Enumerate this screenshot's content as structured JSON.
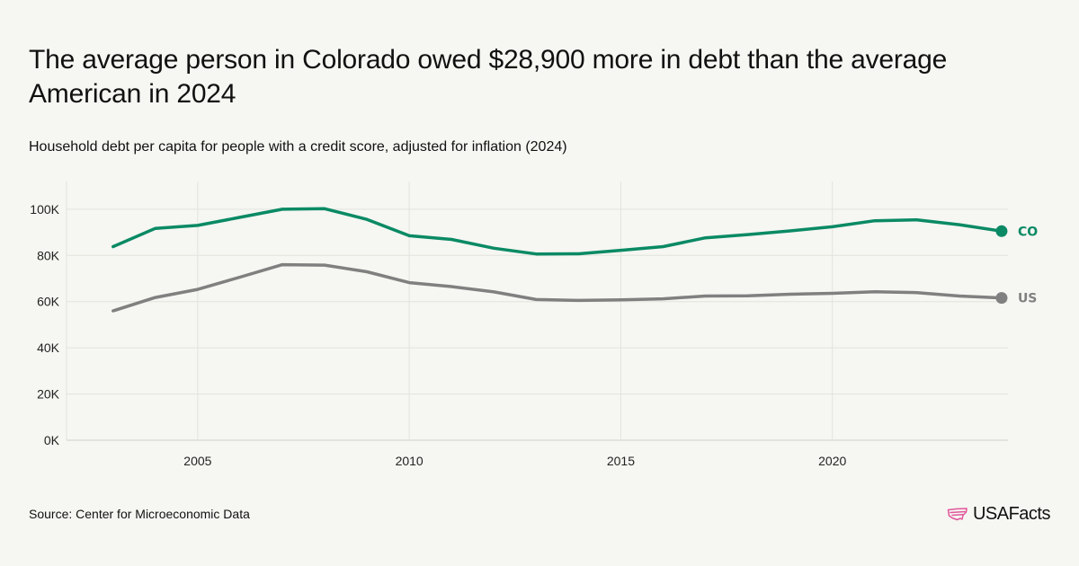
{
  "title": "The average person in Colorado owed $28,900 more in debt than the average American in 2024",
  "subtitle": "Household debt per capita for people with a credit score, adjusted for inflation (2024)",
  "source": "Source: Center for Microeconomic Data",
  "brand": "USAFacts",
  "colors": {
    "co": "#0a8a64",
    "us": "#808080",
    "grid": "#e3e3de",
    "brand_icon": "#e0579a"
  },
  "chart_data": {
    "type": "line",
    "title": "The average person in Colorado owed $28,900 more in debt than the average American in 2024",
    "subtitle": "Household debt per capita for people with a credit score, adjusted for inflation (2024)",
    "xlabel": "",
    "ylabel": "",
    "x": [
      2003,
      2004,
      2005,
      2006,
      2007,
      2008,
      2009,
      2010,
      2011,
      2012,
      2013,
      2014,
      2015,
      2016,
      2017,
      2018,
      2019,
      2020,
      2021,
      2022,
      2023,
      2024
    ],
    "xticks": [
      2005,
      2010,
      2015,
      2020
    ],
    "yticks": [
      0,
      20000,
      40000,
      60000,
      80000,
      100000
    ],
    "ytick_labels": [
      "0K",
      "20K",
      "40K",
      "60K",
      "80K",
      "100K"
    ],
    "ylim": [
      0,
      112000
    ],
    "xlim": [
      2001.9,
      2024.15
    ],
    "grid": true,
    "legend": "end-labels",
    "series": [
      {
        "name": "CO",
        "color": "#0a8a64",
        "values": [
          83800,
          91700,
          93000,
          96500,
          100000,
          100200,
          95600,
          88500,
          86900,
          83100,
          80600,
          80700,
          82200,
          83800,
          87600,
          89000,
          90600,
          92400,
          95000,
          95400,
          93300,
          90500
        ]
      },
      {
        "name": "US",
        "color": "#808080",
        "values": [
          56000,
          61800,
          65300,
          70600,
          76000,
          75800,
          72900,
          68200,
          66500,
          64200,
          60900,
          60500,
          60800,
          61200,
          62400,
          62500,
          63200,
          63600,
          64300,
          63900,
          62400,
          61600
        ]
      }
    ]
  }
}
